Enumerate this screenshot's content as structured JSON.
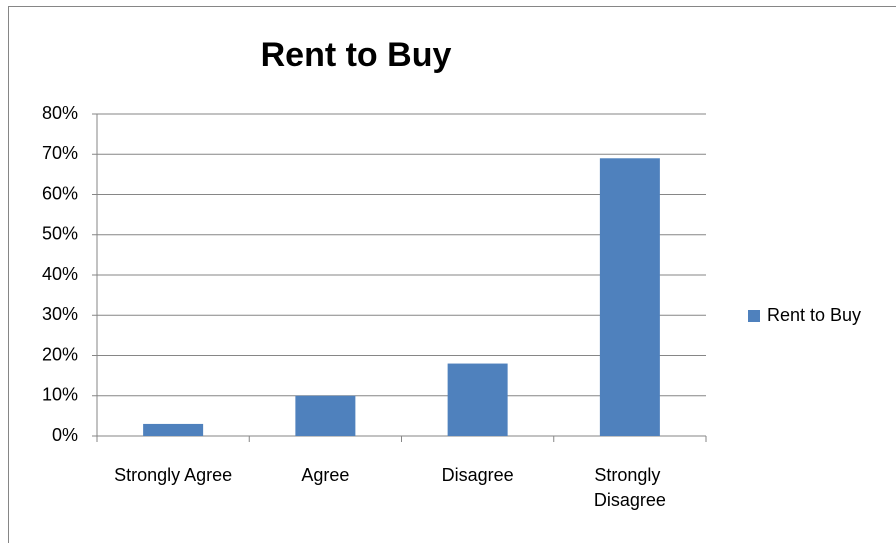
{
  "chart_data": {
    "type": "bar",
    "title": "Rent to Buy",
    "categories": [
      "Strongly Agree",
      "Agree",
      "Disagree",
      "Strongly Disagree"
    ],
    "series": [
      {
        "name": "Rent to Buy",
        "color": "#4f81bd",
        "values": [
          3,
          10,
          18,
          69
        ]
      }
    ],
    "ylim": [
      0,
      80
    ],
    "yticks": [
      {
        "value": 0,
        "label": "0%"
      },
      {
        "value": 10,
        "label": "10%"
      },
      {
        "value": 20,
        "label": "20%"
      },
      {
        "value": 30,
        "label": "30%"
      },
      {
        "value": 40,
        "label": "40%"
      },
      {
        "value": 50,
        "label": "50%"
      },
      {
        "value": 60,
        "label": "60%"
      },
      {
        "value": 70,
        "label": "70%"
      },
      {
        "value": 80,
        "label": "80%"
      }
    ],
    "grid": true,
    "legend": "right"
  }
}
